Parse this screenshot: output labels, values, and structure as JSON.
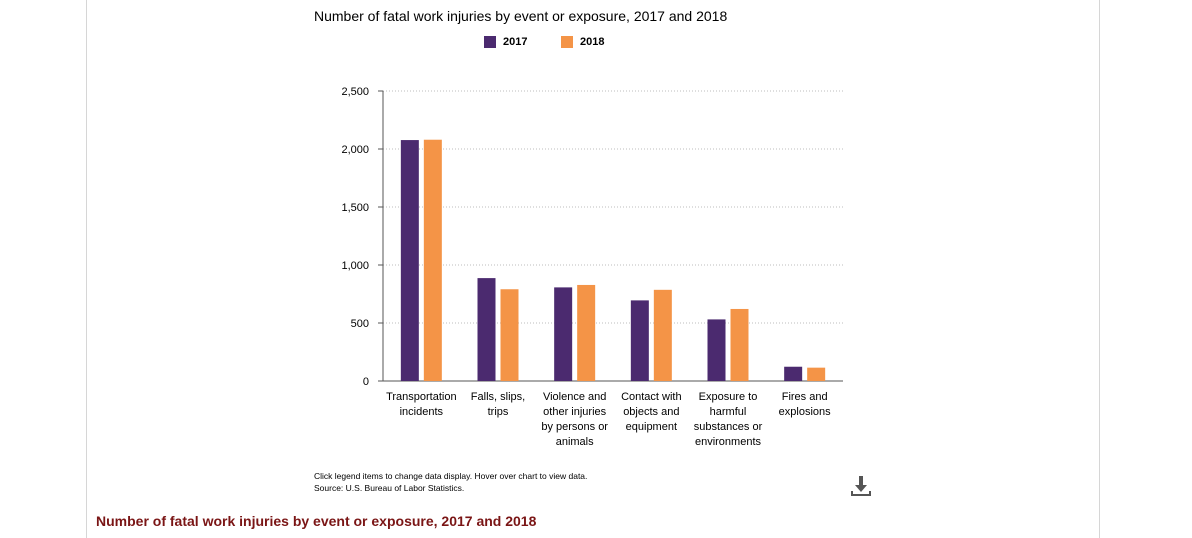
{
  "chart_data": {
    "type": "bar",
    "title": "Number of fatal work injuries by event or exposure, 2017 and 2018",
    "categories": [
      [
        "Transportation",
        "incidents"
      ],
      [
        "Falls, slips,",
        "trips"
      ],
      [
        "Violence and",
        "other injuries",
        "by persons or",
        "animals"
      ],
      [
        "Contact with",
        "objects and",
        "equipment"
      ],
      [
        "Exposure to",
        "harmful",
        "substances or",
        "environments"
      ],
      [
        "Fires and",
        "explosions"
      ]
    ],
    "series": [
      {
        "name": "2017",
        "color": "#4b2a6f",
        "values": [
          2077,
          887,
          807,
          695,
          531,
          123
        ]
      },
      {
        "name": "2018",
        "color": "#f49447",
        "values": [
          2080,
          791,
          828,
          786,
          621,
          115
        ]
      }
    ],
    "y_ticks": [
      "0",
      "500",
      "1,000",
      "1,500",
      "2,000",
      "2,500"
    ],
    "ylim": [
      0,
      2500
    ],
    "grid": true,
    "legend_position": "top-center"
  },
  "footnote": {
    "line1": "Click legend items to change data display. Hover over chart to view data.",
    "line2": "Source: U.S. Bureau of Labor Statistics."
  },
  "download_icon": "download-icon",
  "bottom_link_text": "Number of fatal work injuries by event or exposure, 2017 and 2018"
}
